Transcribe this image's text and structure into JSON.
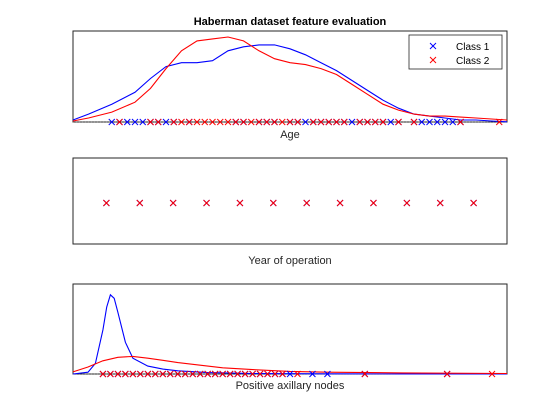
{
  "chart_data": [
    {
      "type": "line",
      "title": "Haberman dataset feature evaluation",
      "xlabel": "Age",
      "xlim": [
        28,
        84
      ],
      "ylim": [
        0,
        0.045
      ],
      "grid": false,
      "legend": {
        "placement": "top-right",
        "entries": [
          "Class 1",
          "Class 2"
        ]
      },
      "series": [
        {
          "name": "Class 1",
          "color": "#0000ff",
          "density": {
            "x": [
              28,
              30,
              33,
              36,
              38,
              40,
              42,
              44,
              46,
              48,
              50,
              52,
              54,
              56,
              58,
              60,
              62,
              64,
              66,
              68,
              70,
              72,
              74,
              76,
              78,
              80,
              82,
              84
            ],
            "y": [
              0.001,
              0.004,
              0.009,
              0.015,
              0.022,
              0.028,
              0.03,
              0.03,
              0.031,
              0.036,
              0.038,
              0.039,
              0.039,
              0.037,
              0.034,
              0.03,
              0.026,
              0.021,
              0.016,
              0.011,
              0.007,
              0.004,
              0.003,
              0.002,
              0.001,
              0.001,
              0.0005,
              0.0001
            ]
          },
          "points": [
            33,
            34,
            35,
            36,
            37,
            38,
            39,
            40,
            41,
            43,
            49,
            50,
            52,
            53,
            54,
            56,
            57,
            58,
            59,
            60,
            61,
            62,
            63,
            64,
            65,
            66,
            67,
            68,
            69,
            70,
            72,
            73,
            74,
            75,
            76,
            77,
            78
          ]
        },
        {
          "name": "Class 2",
          "color": "#ff0000",
          "density": {
            "x": [
              28,
              30,
              33,
              36,
              38,
              40,
              42,
              44,
              46,
              48,
              50,
              52,
              54,
              56,
              58,
              60,
              62,
              64,
              66,
              68,
              70,
              72,
              74,
              76,
              78,
              80,
              82,
              84
            ],
            "y": [
              0.0005,
              0.002,
              0.005,
              0.01,
              0.017,
              0.027,
              0.036,
              0.041,
              0.042,
              0.043,
              0.041,
              0.036,
              0.032,
              0.03,
              0.029,
              0.027,
              0.024,
              0.019,
              0.014,
              0.009,
              0.006,
              0.004,
              0.003,
              0.003,
              0.0025,
              0.002,
              0.0015,
              0.001
            ]
          },
          "points": [
            34,
            38,
            39,
            41,
            42,
            43,
            44,
            45,
            46,
            47,
            48,
            49,
            50,
            51,
            52,
            53,
            54,
            55,
            56,
            57,
            59,
            60,
            61,
            62,
            63,
            65,
            66,
            67,
            68,
            70,
            72,
            78,
            83
          ]
        }
      ]
    },
    {
      "type": "scatter",
      "xlabel": "Year of operation",
      "xlim": [
        57,
        70
      ],
      "grid": false,
      "series": [
        {
          "name": "Class 1",
          "color": "#0000ff",
          "points": [
            58,
            59,
            60,
            61,
            62,
            63,
            64,
            65,
            66,
            67,
            68,
            69
          ]
        },
        {
          "name": "Class 2",
          "color": "#ff0000",
          "points": [
            58,
            59,
            60,
            61,
            62,
            63,
            64,
            65,
            66,
            67,
            68,
            69
          ]
        }
      ]
    },
    {
      "type": "line",
      "xlabel": "Positive axillary nodes",
      "xlim": [
        -4,
        54
      ],
      "ylim": [
        0,
        0.5
      ],
      "grid": false,
      "series": [
        {
          "name": "Class 1",
          "color": "#0000ff",
          "density": {
            "x": [
              -4,
              -2,
              -1,
              0,
              0.5,
              1,
              1.5,
              2,
              3,
              4,
              6,
              8,
              10,
              14,
              20,
              30,
              40,
              54
            ],
            "y": [
              0,
              0.01,
              0.06,
              0.25,
              0.38,
              0.45,
              0.43,
              0.35,
              0.18,
              0.09,
              0.045,
              0.028,
              0.018,
              0.008,
              0.003,
              0.001,
              0.0005,
              0
            ]
          },
          "points": [
            0,
            1,
            2,
            3,
            4,
            5,
            6,
            7,
            8,
            9,
            10,
            11,
            12,
            13,
            14,
            15,
            16,
            17,
            18,
            19,
            20,
            21,
            22,
            23,
            24,
            25,
            28,
            30,
            35,
            46
          ]
        },
        {
          "name": "Class 2",
          "color": "#ff0000",
          "density": {
            "x": [
              -4,
              -2,
              0,
              2,
              4,
              6,
              8,
              10,
              12,
              14,
              16,
              20,
              25,
              30,
              40,
              54
            ],
            "y": [
              0.012,
              0.04,
              0.075,
              0.095,
              0.1,
              0.09,
              0.078,
              0.065,
              0.055,
              0.045,
              0.035,
              0.025,
              0.015,
              0.01,
              0.006,
              0.003
            ]
          },
          "points": [
            0,
            1,
            2,
            3,
            4,
            5,
            6,
            7,
            8,
            9,
            10,
            11,
            12,
            13,
            14,
            15,
            16,
            17,
            18,
            19,
            20,
            21,
            22,
            23,
            24,
            26,
            35,
            46,
            52
          ]
        }
      ]
    }
  ]
}
